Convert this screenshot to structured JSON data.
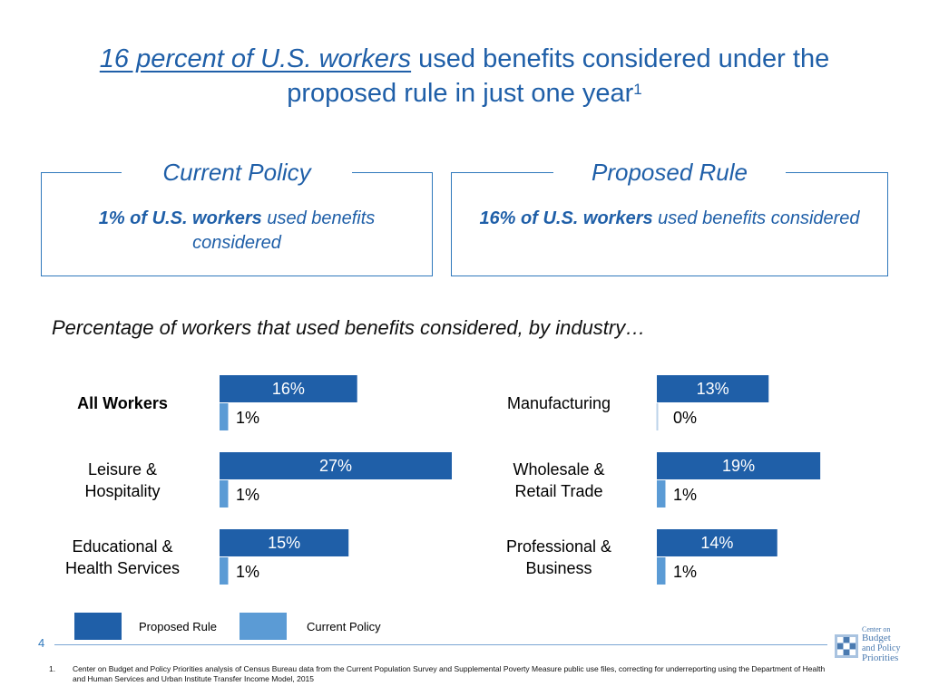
{
  "title": {
    "underlined": "16 percent of U.S. workers",
    "rest": " used benefits considered under the proposed rule in just one year",
    "sup": "1"
  },
  "boxes": {
    "current": {
      "heading": "Current Policy",
      "bold": "1% of U.S. workers",
      "rest": " used benefits considered"
    },
    "proposed": {
      "heading": "Proposed Rule",
      "bold": "16% of U.S. workers",
      "rest": " used benefits considered"
    }
  },
  "subtitle": "Percentage of workers that used benefits considered, by industry…",
  "chart_data": {
    "type": "bar",
    "orientation": "horizontal",
    "xlim": [
      0,
      27
    ],
    "series": [
      {
        "name": "Proposed Rule",
        "color": "#1f5fa8"
      },
      {
        "name": "Current Policy",
        "color": "#5b9bd5"
      }
    ],
    "groups": [
      {
        "label": "All Workers",
        "bold": true,
        "proposed": 16,
        "current": 1,
        "proposed_label": "16%",
        "current_label": "1%"
      },
      {
        "label": "Leisure & Hospitality",
        "lines": [
          "Leisure &",
          "Hospitality"
        ],
        "proposed": 27,
        "current": 1,
        "proposed_label": "27%",
        "current_label": "1%"
      },
      {
        "label": "Educational & Health Services",
        "lines": [
          "Educational &",
          "Health Services"
        ],
        "proposed": 15,
        "current": 1,
        "proposed_label": "15%",
        "current_label": "1%"
      },
      {
        "label": "Manufacturing",
        "proposed": 13,
        "current": 0,
        "proposed_label": "13%",
        "current_label": "0%"
      },
      {
        "label": "Wholesale & Retail Trade",
        "lines": [
          "Wholesale &",
          "Retail Trade"
        ],
        "proposed": 19,
        "current": 1,
        "proposed_label": "19%",
        "current_label": "1%"
      },
      {
        "label": "Professional & Business",
        "lines": [
          "Professional &",
          "Business"
        ],
        "proposed": 14,
        "current": 1,
        "proposed_label": "14%",
        "current_label": "1%"
      }
    ]
  },
  "legend": {
    "proposed": "Proposed Rule",
    "current": "Current Policy"
  },
  "page_number": "4",
  "footnote": {
    "number": "1.",
    "text": "Center on Budget and Policy Priorities analysis of Census Bureau data from the Current Population Survey and Supplemental Poverty Measure public use files, correcting for underreporting using the Department of Health and Human Services and Urban Institute Transfer Income Model, 2015"
  },
  "logo": {
    "lines": [
      "Center on",
      "Budget",
      "and Policy",
      "Priorities"
    ],
    "color": "#4a7ab0"
  }
}
